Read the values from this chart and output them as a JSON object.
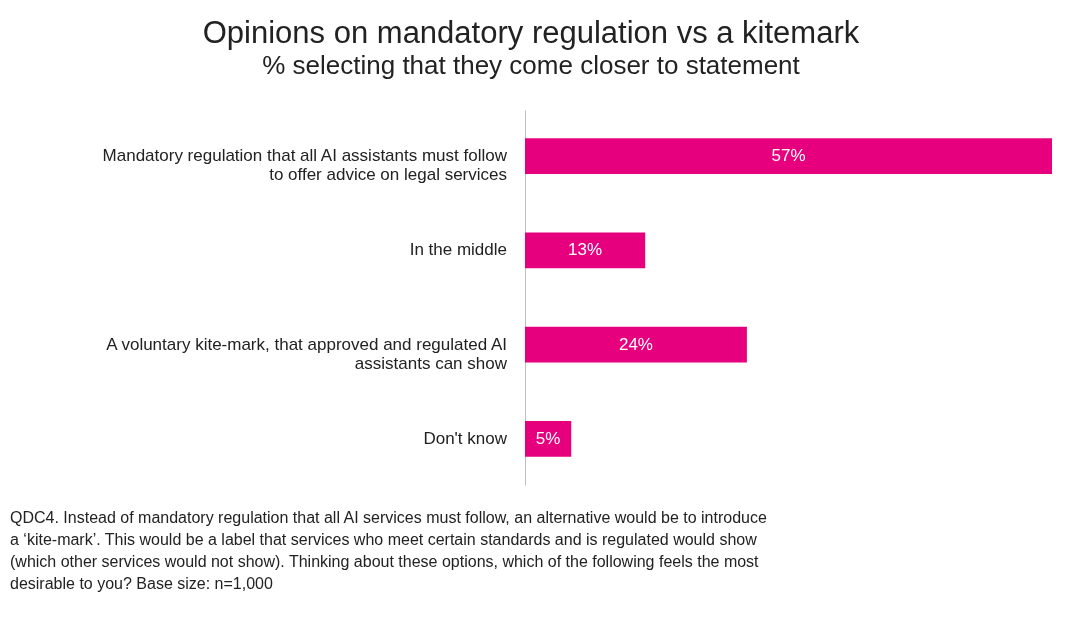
{
  "chart_data": {
    "type": "bar",
    "orientation": "horizontal",
    "title": "Opinions on mandatory regulation vs a kitemark",
    "subtitle": "% selecting that they come closer to statement",
    "categories": [
      "Mandatory regulation that all AI assistants must follow to offer advice on legal services",
      "In the middle",
      "A voluntary kite-mark, that approved and regulated AI assistants can show",
      "Don't know"
    ],
    "values": [
      57,
      13,
      24,
      5
    ],
    "value_labels": [
      "57%",
      "13%",
      "24%",
      "5%"
    ],
    "color": "#e6007e",
    "xlim": [
      0,
      57
    ],
    "annotations": [
      "QDC4. Instead of mandatory regulation that all AI services must follow, an alternative would be to introduce a ‘kite-mark’. This would be a label that services who meet certain standards and is regulated would show (which other services would not show). Thinking about these options, which of the following feels the most desirable to you? Base size: n=1,000"
    ]
  }
}
